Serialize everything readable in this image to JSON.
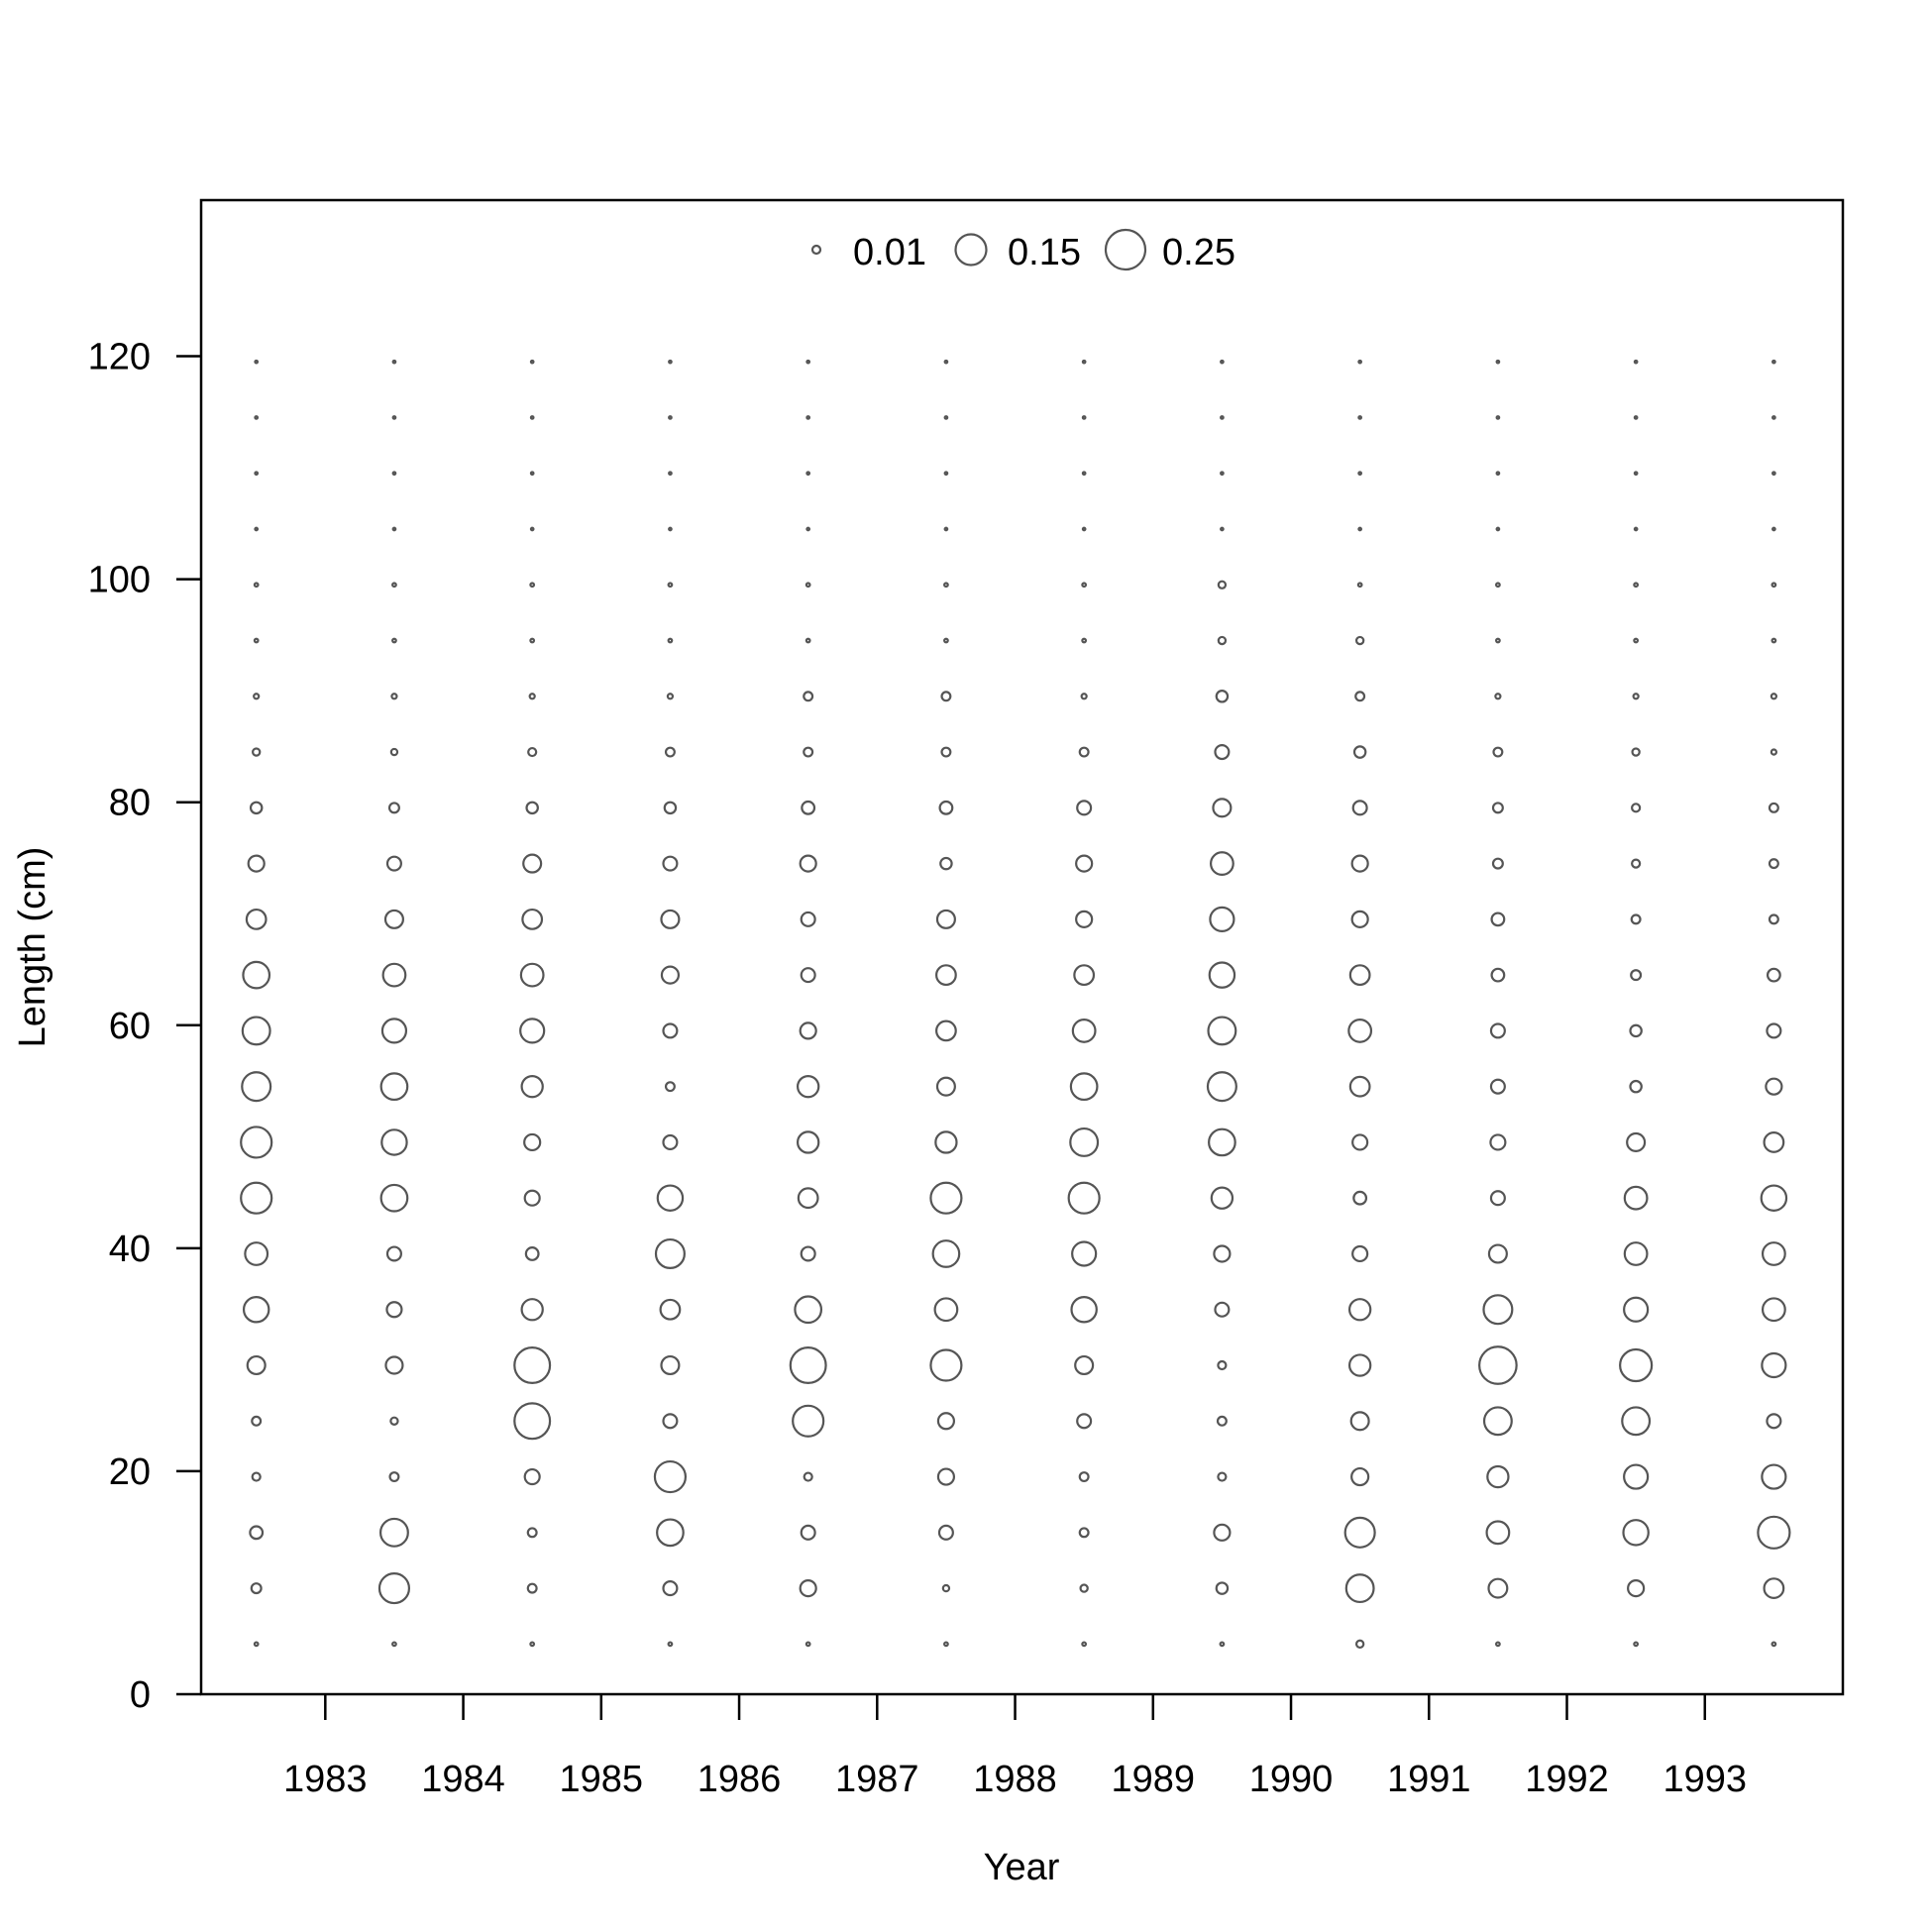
{
  "chart_data": {
    "type": "scatter",
    "subtype": "bubble",
    "title": "",
    "xlabel": "Year",
    "ylabel": "Length (cm)",
    "x_ticks": [
      "1983",
      "1984",
      "1985",
      "1986",
      "1987",
      "1988",
      "1989",
      "1990",
      "1991",
      "1992",
      "1993"
    ],
    "y_ticks": [
      "0",
      "20",
      "40",
      "60",
      "80",
      "100",
      "120"
    ],
    "x_range": [
      1982.1,
      1994.0
    ],
    "y_range": [
      0,
      134
    ],
    "legend": {
      "placement": "top-center",
      "entries": [
        {
          "label": "0.01",
          "value": 0.01
        },
        {
          "label": "0.15",
          "value": 0.15
        },
        {
          "label": "0.25",
          "value": 0.25
        }
      ]
    },
    "marker_color": "#555555",
    "x_positions": [
      1982.5,
      1983.5,
      1984.5,
      1985.5,
      1986.5,
      1987.5,
      1988.5,
      1989.5,
      1990.5,
      1991.5,
      1992.5,
      1993.5
    ],
    "lengths": [
      4.5,
      9.5,
      14.5,
      19.5,
      24.5,
      29.5,
      34.5,
      39.5,
      44.5,
      49.5,
      54.5,
      59.5,
      64.5,
      69.5,
      74.5,
      79.5,
      84.5,
      89.5,
      94.5,
      99.5,
      104.5,
      109.5,
      114.5,
      119.5
    ],
    "proportions": [
      [
        0.002,
        0.015,
        0.025,
        0.01,
        0.012,
        0.05,
        0.1,
        0.08,
        0.15,
        0.15,
        0.13,
        0.12,
        0.11,
        0.06,
        0.04,
        0.02,
        0.008,
        0.004,
        0.002,
        0.002,
        0.001,
        0.001,
        0.001,
        0.001
      ],
      [
        0.002,
        0.14,
        0.12,
        0.012,
        0.008,
        0.045,
        0.035,
        0.03,
        0.11,
        0.1,
        0.11,
        0.09,
        0.08,
        0.05,
        0.03,
        0.015,
        0.006,
        0.004,
        0.002,
        0.002,
        0.001,
        0.001,
        0.001,
        0.001
      ],
      [
        0.002,
        0.012,
        0.012,
        0.035,
        0.2,
        0.2,
        0.07,
        0.025,
        0.035,
        0.04,
        0.07,
        0.09,
        0.08,
        0.06,
        0.05,
        0.02,
        0.01,
        0.004,
        0.002,
        0.002,
        0.001,
        0.001,
        0.001,
        0.001
      ],
      [
        0.002,
        0.03,
        0.11,
        0.15,
        0.03,
        0.05,
        0.06,
        0.13,
        0.1,
        0.03,
        0.012,
        0.03,
        0.045,
        0.05,
        0.03,
        0.02,
        0.012,
        0.004,
        0.002,
        0.002,
        0.001,
        0.001,
        0.001,
        0.001
      ],
      [
        0.002,
        0.04,
        0.03,
        0.01,
        0.15,
        0.2,
        0.11,
        0.03,
        0.06,
        0.07,
        0.07,
        0.04,
        0.03,
        0.03,
        0.04,
        0.025,
        0.012,
        0.012,
        0.002,
        0.002,
        0.001,
        0.001,
        0.001,
        0.001
      ],
      [
        0.002,
        0.006,
        0.03,
        0.04,
        0.04,
        0.15,
        0.08,
        0.11,
        0.15,
        0.07,
        0.05,
        0.06,
        0.06,
        0.05,
        0.02,
        0.025,
        0.012,
        0.012,
        0.002,
        0.002,
        0.001,
        0.001,
        0.001,
        0.001
      ],
      [
        0.002,
        0.008,
        0.012,
        0.012,
        0.03,
        0.05,
        0.1,
        0.09,
        0.15,
        0.12,
        0.11,
        0.08,
        0.06,
        0.04,
        0.04,
        0.03,
        0.012,
        0.004,
        0.002,
        0.002,
        0.001,
        0.001,
        0.001,
        0.001
      ],
      [
        0.002,
        0.02,
        0.04,
        0.01,
        0.012,
        0.01,
        0.03,
        0.04,
        0.07,
        0.11,
        0.13,
        0.12,
        0.1,
        0.09,
        0.08,
        0.05,
        0.03,
        0.02,
        0.008,
        0.008,
        0.001,
        0.001,
        0.001,
        0.001
      ],
      [
        0.008,
        0.12,
        0.14,
        0.045,
        0.05,
        0.07,
        0.07,
        0.035,
        0.025,
        0.035,
        0.06,
        0.08,
        0.06,
        0.04,
        0.04,
        0.03,
        0.02,
        0.012,
        0.008,
        0.002,
        0.001,
        0.001,
        0.001,
        0.001
      ],
      [
        0.002,
        0.055,
        0.08,
        0.07,
        0.12,
        0.22,
        0.13,
        0.05,
        0.03,
        0.035,
        0.03,
        0.03,
        0.025,
        0.025,
        0.015,
        0.015,
        0.012,
        0.004,
        0.002,
        0.002,
        0.001,
        0.001,
        0.001,
        0.001
      ],
      [
        0.002,
        0.04,
        0.1,
        0.09,
        0.12,
        0.16,
        0.09,
        0.08,
        0.08,
        0.05,
        0.02,
        0.02,
        0.015,
        0.012,
        0.01,
        0.01,
        0.008,
        0.004,
        0.002,
        0.002,
        0.001,
        0.001,
        0.001,
        0.001
      ],
      [
        0.002,
        0.06,
        0.16,
        0.09,
        0.03,
        0.09,
        0.08,
        0.08,
        0.1,
        0.06,
        0.04,
        0.03,
        0.025,
        0.012,
        0.012,
        0.012,
        0.004,
        0.004,
        0.002,
        0.002,
        0.001,
        0.001,
        0.001,
        0.001
      ]
    ]
  }
}
